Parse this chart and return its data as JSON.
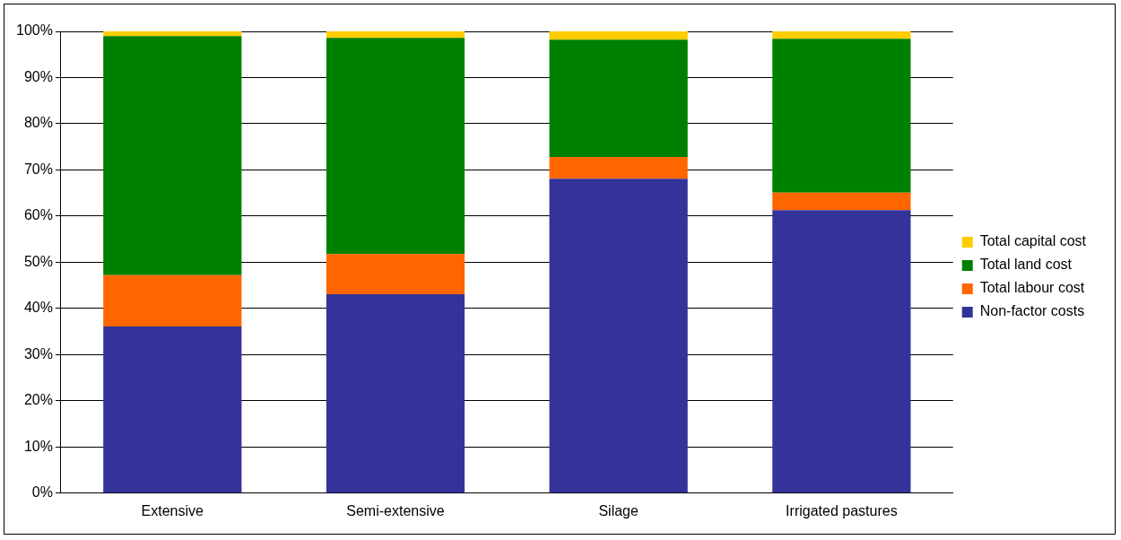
{
  "chart_data": {
    "type": "bar",
    "stacked": true,
    "categories": [
      "Extensive",
      "Semi-extensive",
      "Silage",
      "Irrigated pastures"
    ],
    "series": [
      {
        "name": "Non-factor costs",
        "color": "#333399",
        "values": [
          36.1,
          43.1,
          68.1,
          61.3
        ]
      },
      {
        "name": "Total labour cost",
        "color": "#ff6600",
        "values": [
          11.1,
          8.7,
          4.7,
          3.8
        ]
      },
      {
        "name": "Total land cost",
        "color": "#008000",
        "values": [
          51.8,
          46.8,
          25.4,
          33.3
        ]
      },
      {
        "name": "Total capital cost",
        "color": "#ffcc00",
        "values": [
          1.0,
          1.4,
          1.8,
          1.6
        ]
      }
    ],
    "ylim": [
      0,
      100
    ],
    "yticks": [
      {
        "value": 0,
        "label": "0%"
      },
      {
        "value": 10,
        "label": "10%"
      },
      {
        "value": 20,
        "label": "20%"
      },
      {
        "value": 30,
        "label": "30%"
      },
      {
        "value": 40,
        "label": "40%"
      },
      {
        "value": 50,
        "label": "50%"
      },
      {
        "value": 60,
        "label": "60%"
      },
      {
        "value": 70,
        "label": "70%"
      },
      {
        "value": 80,
        "label": "80%"
      },
      {
        "value": 90,
        "label": "90%"
      },
      {
        "value": 100,
        "label": "100%"
      }
    ],
    "grid": "y",
    "legend": "right"
  }
}
